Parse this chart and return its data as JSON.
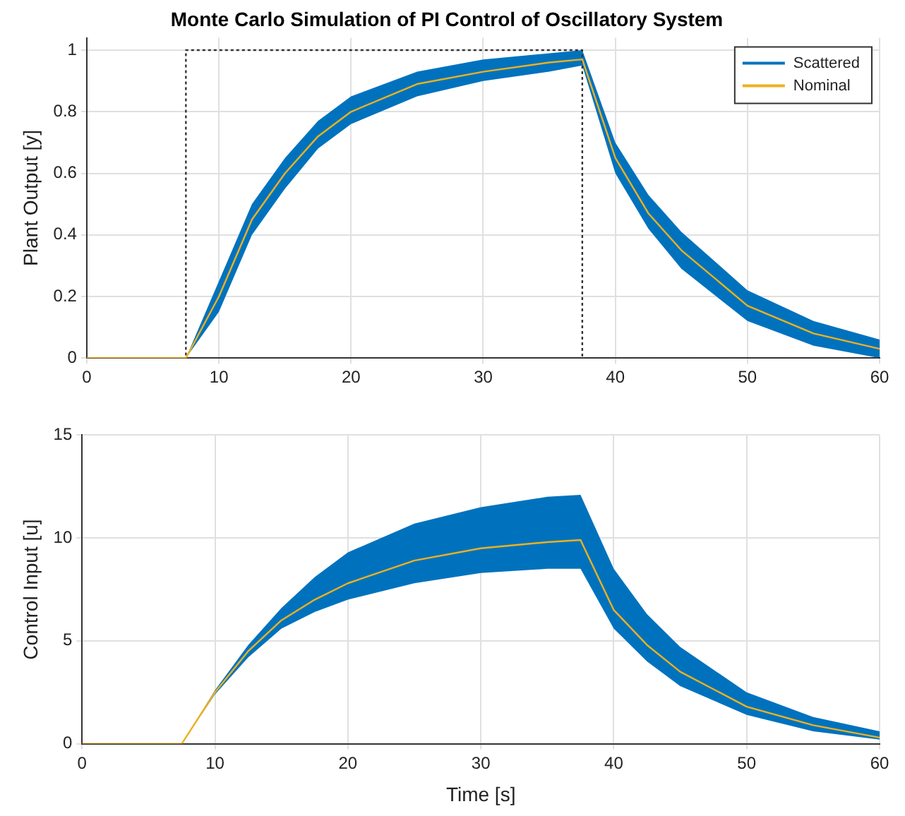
{
  "chart_data": [
    {
      "type": "line",
      "title": "Monte Carlo Simulation of PI Control of Oscillatory System",
      "ylabel": "Plant Output [y]",
      "x": [
        0,
        7.5,
        10,
        12.5,
        15,
        17.5,
        20,
        25,
        30,
        35,
        37.5,
        40,
        42.5,
        45,
        50,
        55,
        60
      ],
      "series": [
        {
          "name": "Scattered",
          "color": "#0072bd",
          "values": [
            null,
            null,
            null,
            null,
            null,
            null,
            null,
            null,
            null,
            null,
            null,
            null,
            null,
            null,
            null,
            null,
            null
          ],
          "lower": [
            0,
            0,
            0.15,
            0.4,
            0.55,
            0.68,
            0.76,
            0.85,
            0.9,
            0.93,
            0.95,
            0.6,
            0.42,
            0.29,
            0.12,
            0.04,
            0
          ],
          "upper": [
            0,
            0,
            0.25,
            0.5,
            0.65,
            0.77,
            0.85,
            0.93,
            0.97,
            0.99,
            1,
            0.7,
            0.53,
            0.41,
            0.22,
            0.12,
            0.06
          ]
        },
        {
          "name": "Nominal",
          "color": "#edb120",
          "values": [
            0,
            0,
            0.2,
            0.45,
            0.6,
            0.72,
            0.8,
            0.89,
            0.93,
            0.96,
            0.97,
            0.65,
            0.47,
            0.35,
            0.17,
            0.08,
            0.03
          ]
        },
        {
          "color": "#333333",
          "line_style": "dotted",
          "x": [
            0,
            7.5,
            7.5,
            37.5,
            37.5,
            60
          ],
          "values": [
            0,
            0,
            1,
            1,
            0,
            0
          ]
        }
      ],
      "xlim": [
        0,
        60
      ],
      "xticks": [
        0,
        10,
        20,
        30,
        40,
        50,
        60
      ],
      "ylim": [
        0,
        1.04
      ],
      "yticks": [
        0,
        0.2,
        0.4,
        0.6,
        0.8,
        1
      ],
      "grid": true,
      "legend": "top right"
    },
    {
      "type": "line",
      "xlabel": "Time [s]",
      "ylabel": "Control Input [u]",
      "x": [
        0,
        7.5,
        10,
        12.5,
        15,
        17.5,
        20,
        25,
        30,
        35,
        37.5,
        40,
        42.5,
        45,
        50,
        55,
        60
      ],
      "series": [
        {
          "color": "#0072bd",
          "values": [
            null,
            null,
            null,
            null,
            null,
            null,
            null,
            null,
            null,
            null,
            null,
            null,
            null,
            null,
            null,
            null,
            null
          ],
          "lower": [
            0,
            0,
            2.4,
            4.2,
            5.6,
            6.4,
            7,
            7.8,
            8.3,
            8.5,
            8.5,
            5.6,
            4,
            2.8,
            1.4,
            0.6,
            0.2
          ],
          "upper": [
            0,
            0,
            2.6,
            4.8,
            6.6,
            8.1,
            9.3,
            10.7,
            11.5,
            12,
            12.1,
            8.5,
            6.3,
            4.7,
            2.5,
            1.3,
            0.6
          ]
        },
        {
          "color": "#edb120",
          "values": [
            0,
            0,
            2.5,
            4.5,
            6,
            7,
            7.8,
            8.9,
            9.5,
            9.8,
            9.9,
            6.5,
            4.8,
            3.5,
            1.8,
            0.9,
            0.3
          ]
        }
      ],
      "xlim": [
        0,
        60
      ],
      "xticks": [
        0,
        10,
        20,
        30,
        40,
        50,
        60
      ],
      "ylim": [
        0,
        15
      ],
      "yticks": [
        0,
        5,
        10,
        15
      ],
      "grid": true
    }
  ]
}
